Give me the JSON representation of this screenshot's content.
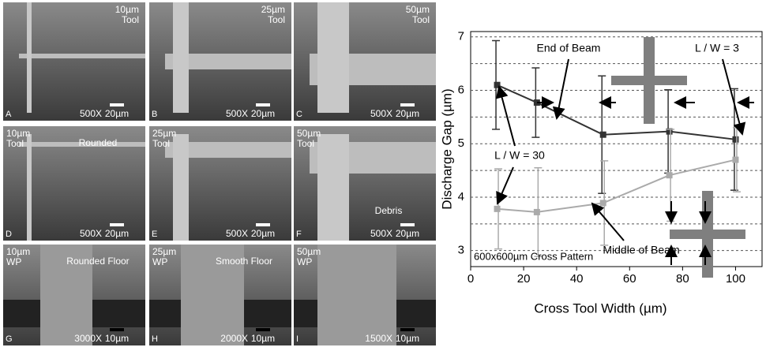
{
  "panels": [
    {
      "letter": "A",
      "caption": [
        "10µm",
        "Tool"
      ],
      "mag": "500X",
      "scale": "20µm"
    },
    {
      "letter": "B",
      "caption": [
        "25µm",
        "Tool"
      ],
      "mag": "500X",
      "scale": "20µm"
    },
    {
      "letter": "C",
      "caption": [
        "50µm",
        "Tool"
      ],
      "mag": "500X",
      "scale": "20µm"
    },
    {
      "letter": "D",
      "caption": [
        "10µm",
        "Tool"
      ],
      "note": "Rounded",
      "mag": "500X",
      "scale": "20µm"
    },
    {
      "letter": "E",
      "caption": [
        "25µm",
        "Tool"
      ],
      "mag": "500X",
      "scale": "20µm"
    },
    {
      "letter": "F",
      "caption": [
        "50µm",
        "Tool"
      ],
      "note": "Debris",
      "mag": "500X",
      "scale": "20µm"
    },
    {
      "letter": "G",
      "caption": [
        "10µm",
        "WP"
      ],
      "note": "Rounded Floor",
      "mag": "3000X",
      "scale": "10µm"
    },
    {
      "letter": "H",
      "caption": [
        "25µm",
        "WP"
      ],
      "note": "Smooth Floor",
      "mag": "2000X",
      "scale": "10µm"
    },
    {
      "letter": "I",
      "caption": [
        "50µm",
        "WP"
      ],
      "mag": "1500X",
      "scale": "10µm"
    }
  ],
  "chart_data": {
    "type": "line",
    "xlabel": "Cross Tool Width (µm)",
    "ylabel": "Discharge Gap (µm)",
    "x": [
      10,
      25,
      50,
      75,
      100
    ],
    "series": [
      {
        "name": "End of Beam",
        "color": "#333333",
        "values": [
          6.1,
          5.77,
          5.17,
          5.23,
          5.08
        ],
        "errors": [
          0.83,
          0.65,
          1.1,
          0.78,
          0.95
        ]
      },
      {
        "name": "Middle of Beam",
        "color": "#aaaaaa",
        "values": [
          3.78,
          3.72,
          3.89,
          4.41,
          4.7
        ],
        "errors": [
          0.75,
          0.83,
          0.79,
          0.86,
          0.6
        ]
      }
    ],
    "annotations": [
      "L / W = 3",
      "L / W = 30",
      "600x600µm Cross Pattern"
    ],
    "xlim": [
      0,
      110
    ],
    "ylim": [
      2.7,
      7.1
    ],
    "xticks": [
      0,
      20,
      40,
      60,
      80,
      100
    ],
    "yticks": [
      3,
      4,
      5,
      6,
      7
    ],
    "yminor": [
      3.5,
      4.5,
      5.5,
      6.5
    ],
    "grid": true
  }
}
